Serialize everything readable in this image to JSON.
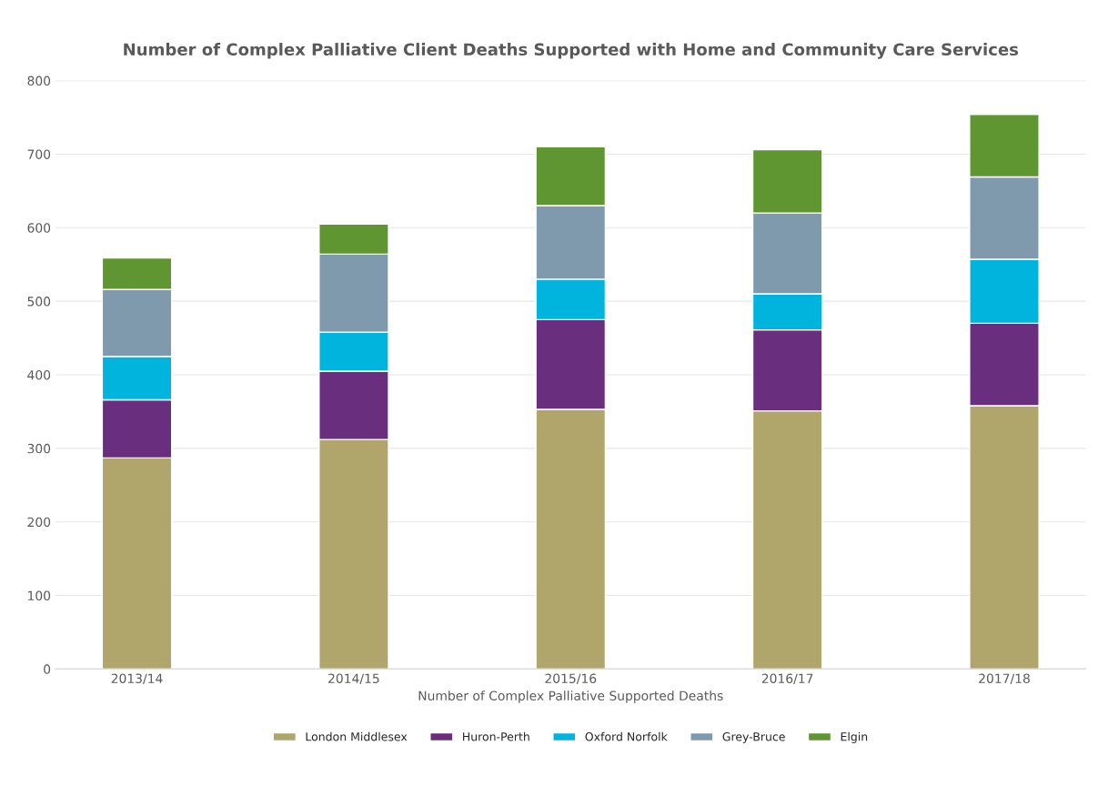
{
  "chart_data": {
    "type": "bar",
    "title": "Number of Complex Palliative Client Deaths Supported with Home and Community Care Services",
    "xlabel": "Number of Complex Palliative Supported Deaths",
    "categories": [
      "2013/14",
      "2014/15",
      "2015/16",
      "2016/17",
      "2017/18"
    ],
    "stacked": true,
    "series": [
      {
        "name": "London Middlesex",
        "color": "#b0a56a",
        "values": [
          287,
          312,
          353,
          351,
          358
        ]
      },
      {
        "name": "Huron-Perth",
        "color": "#6a2e7e",
        "values": [
          79,
          93,
          122,
          110,
          112
        ]
      },
      {
        "name": "Oxford Norfolk",
        "color": "#00b4de",
        "values": [
          59,
          53,
          55,
          49,
          87
        ]
      },
      {
        "name": "Grey-Bruce",
        "color": "#7f9aad",
        "values": [
          91,
          106,
          100,
          110,
          112
        ]
      },
      {
        "name": "Elgin",
        "color": "#5f9632",
        "values": [
          43,
          41,
          80,
          86,
          85
        ]
      }
    ],
    "ylim": [
      0,
      800
    ],
    "yticks": [
      0,
      100,
      200,
      300,
      400,
      500,
      600,
      700,
      800
    ],
    "grid": "y",
    "legend": "bottom"
  }
}
